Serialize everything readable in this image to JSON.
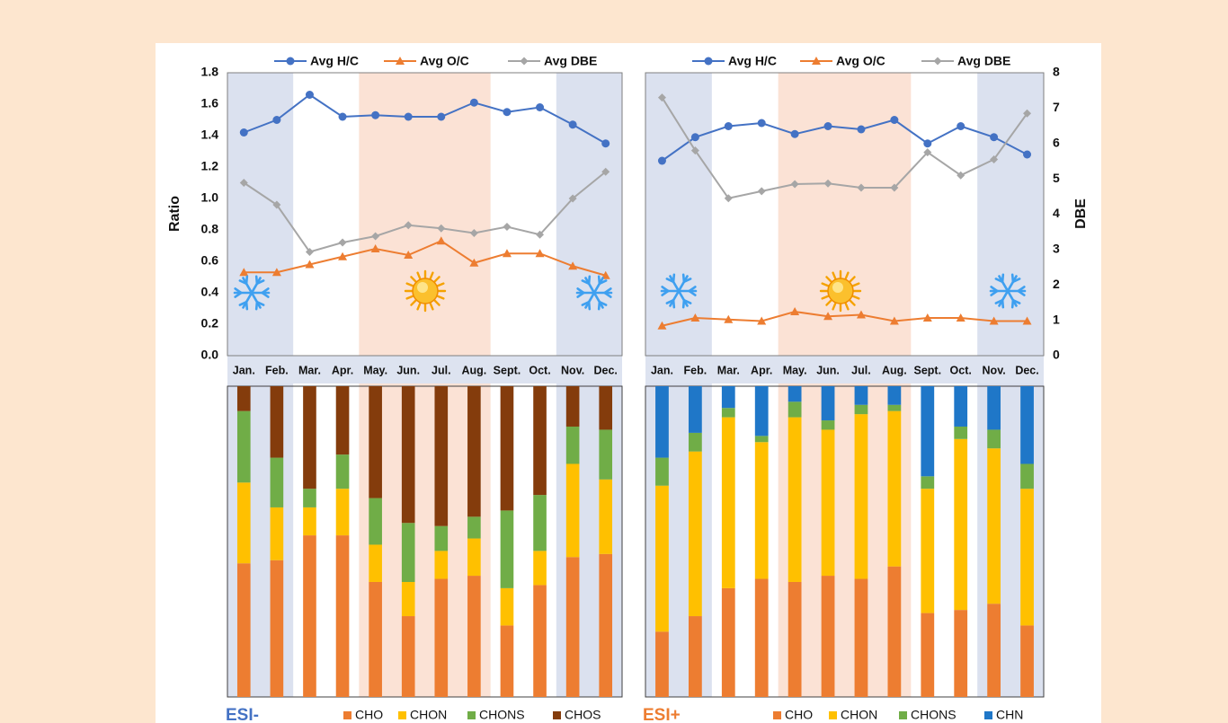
{
  "months": [
    "Jan.",
    "Feb.",
    "Mar.",
    "Apr.",
    "May.",
    "Jun.",
    "Jul.",
    "Aug.",
    "Sept.",
    "Oct.",
    "Nov.",
    "Dec."
  ],
  "legend_top": [
    "Avg H/C",
    "Avg O/C",
    "Avg DBE"
  ],
  "colors": {
    "hc": "#4472c4",
    "oc": "#ed7d31",
    "dbe": "#a6a6a6",
    "winter_band": "#dbe1ef",
    "summer_band": "#fbe2d5",
    "cho": "#ed7d31",
    "chon": "#ffc000",
    "chons": "#70ad47",
    "chos": "#843c0c",
    "chn": "#1f77c8",
    "esi_neg_label": "#4472c4",
    "esi_pos_label": "#ed7d31"
  },
  "icons": [
    "snowflake-icon",
    "sun-icon",
    "snowflake-icon"
  ],
  "chart_data": [
    {
      "type": "line",
      "panel": "ESI-",
      "ylabel": "Ratio",
      "ylim": [
        0.0,
        1.8
      ],
      "yticks": [
        "0.0",
        "0.2",
        "0.4",
        "0.6",
        "0.8",
        "1.0",
        "1.2",
        "1.4",
        "1.6",
        "1.8"
      ],
      "series": [
        {
          "name": "Avg H/C",
          "axis": "left",
          "values": [
            1.42,
            1.5,
            1.66,
            1.52,
            1.53,
            1.52,
            1.52,
            1.61,
            1.55,
            1.58,
            1.47,
            1.35
          ]
        },
        {
          "name": "Avg O/C",
          "axis": "left",
          "values": [
            0.53,
            0.53,
            0.58,
            0.63,
            0.68,
            0.64,
            0.73,
            0.59,
            0.65,
            0.65,
            0.57,
            0.51
          ]
        },
        {
          "name": "Avg DBE",
          "axis": "left",
          "values": [
            1.1,
            0.96,
            0.66,
            0.72,
            0.76,
            0.83,
            0.81,
            0.78,
            0.82,
            0.77,
            1.0,
            1.17
          ]
        }
      ],
      "shading": {
        "winter": [
          "Jan.",
          "Feb.",
          "Nov.",
          "Dec."
        ],
        "summer": [
          "May.",
          "Jun.",
          "Jul.",
          "Aug."
        ]
      },
      "legend": "top"
    },
    {
      "type": "line",
      "panel": "ESI+",
      "y2label": "DBE",
      "ylim": [
        0.0,
        1.8
      ],
      "y2lim": [
        0,
        8
      ],
      "y2ticks": [
        "0",
        "1",
        "2",
        "3",
        "4",
        "5",
        "6",
        "7",
        "8"
      ],
      "series": [
        {
          "name": "Avg H/C",
          "axis": "left",
          "values": [
            1.24,
            1.39,
            1.46,
            1.48,
            1.41,
            1.46,
            1.44,
            1.5,
            1.35,
            1.46,
            1.39,
            1.28
          ]
        },
        {
          "name": "Avg O/C",
          "axis": "left",
          "values": [
            0.19,
            0.24,
            0.23,
            0.22,
            0.28,
            0.25,
            0.26,
            0.22,
            0.24,
            0.24,
            0.22,
            0.22
          ]
        },
        {
          "name": "Avg DBE",
          "axis": "right",
          "values": [
            7.3,
            5.8,
            4.45,
            4.65,
            4.85,
            4.87,
            4.75,
            4.75,
            5.75,
            5.1,
            5.55,
            6.85
          ]
        }
      ],
      "shading": {
        "winter": [
          "Jan.",
          "Feb.",
          "Nov.",
          "Dec."
        ],
        "summer": [
          "May.",
          "Jun.",
          "Jul.",
          "Aug."
        ]
      },
      "legend": "top"
    },
    {
      "type": "bar",
      "stacked": true,
      "panel": "ESI-",
      "label": "ESI-",
      "ylim": [
        0,
        100
      ],
      "series": [
        {
          "name": "CHO",
          "values": [
            43,
            44,
            52,
            52,
            37,
            26,
            38,
            39,
            23,
            36,
            45,
            46
          ]
        },
        {
          "name": "CHON",
          "values": [
            26,
            17,
            9,
            15,
            12,
            11,
            9,
            12,
            12,
            11,
            30,
            24
          ]
        },
        {
          "name": "CHONS",
          "values": [
            23,
            16,
            6,
            11,
            15,
            19,
            8,
            7,
            25,
            18,
            12,
            16
          ]
        },
        {
          "name": "CHOS",
          "values": [
            8,
            23,
            33,
            22,
            36,
            44,
            45,
            42,
            40,
            35,
            13,
            14
          ]
        }
      ]
    },
    {
      "type": "bar",
      "stacked": true,
      "panel": "ESI+",
      "label": "ESI+",
      "ylim": [
        0,
        100
      ],
      "series": [
        {
          "name": "CHO",
          "values": [
            21,
            26,
            35,
            38,
            37,
            39,
            38,
            42,
            27,
            28,
            30,
            23
          ]
        },
        {
          "name": "CHON",
          "values": [
            47,
            53,
            55,
            44,
            53,
            47,
            53,
            50,
            40,
            55,
            50,
            44
          ]
        },
        {
          "name": "CHONS",
          "values": [
            9,
            6,
            3,
            2,
            5,
            3,
            3,
            2,
            4,
            4,
            6,
            8
          ]
        },
        {
          "name": "CHN",
          "values": [
            23,
            15,
            7,
            16,
            5,
            11,
            6,
            6,
            29,
            13,
            14,
            25
          ]
        }
      ]
    }
  ]
}
